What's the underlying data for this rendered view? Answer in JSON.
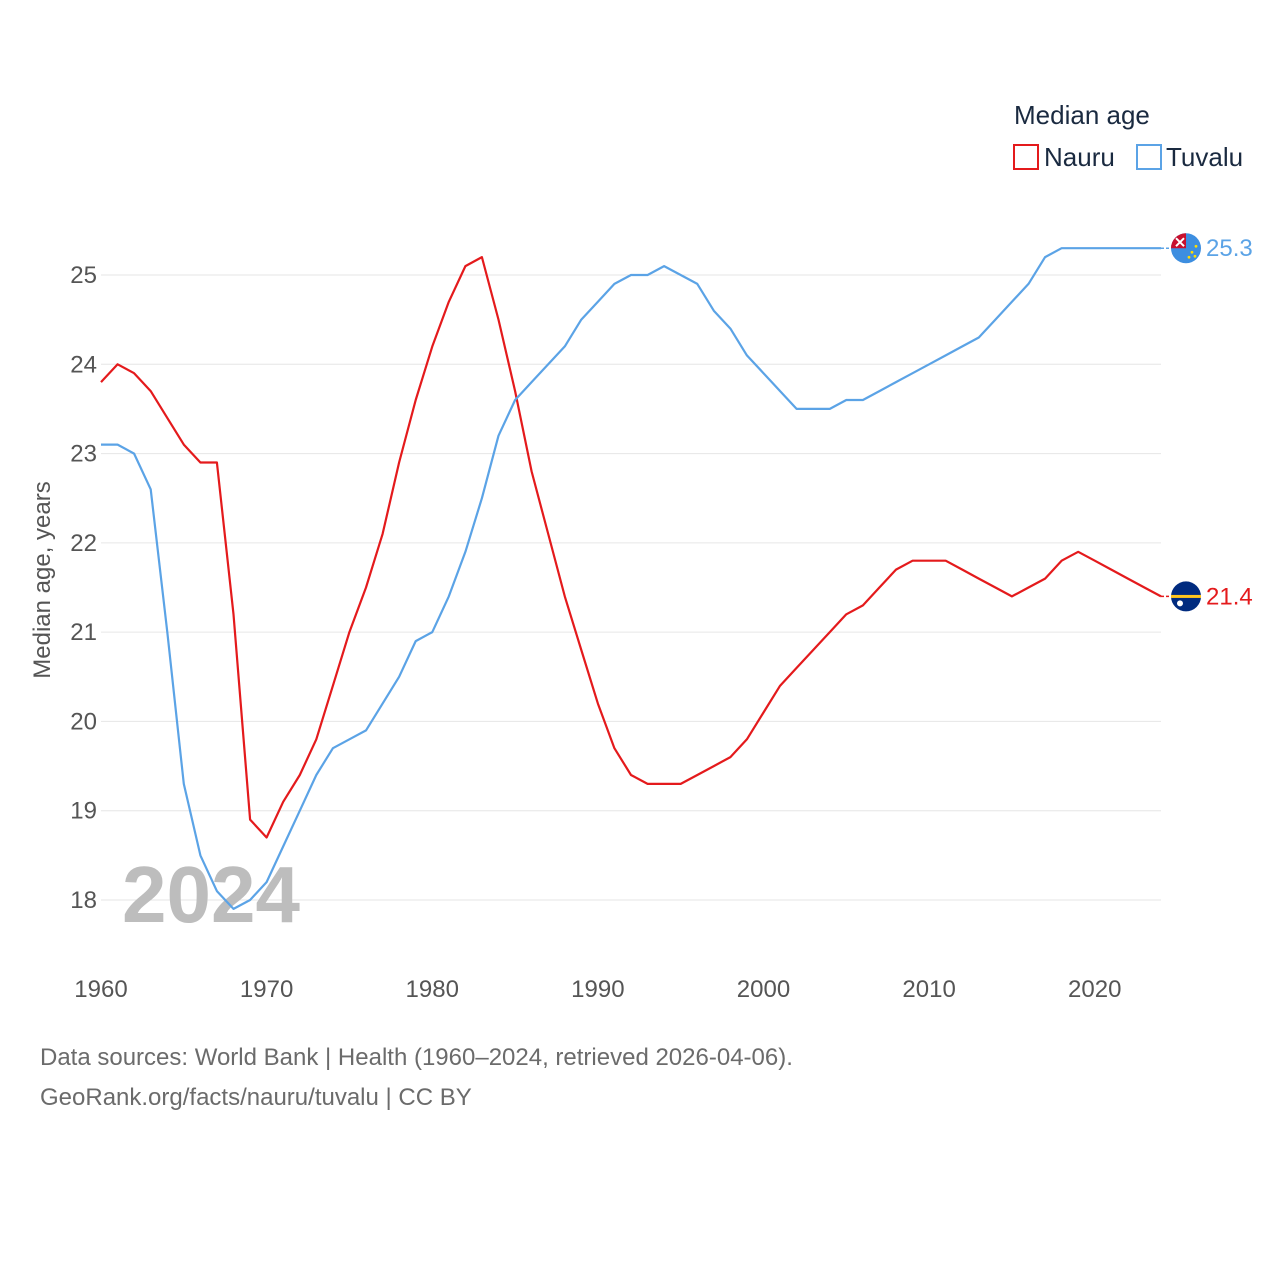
{
  "chart_data": {
    "type": "line",
    "title": "",
    "xlabel": "",
    "ylabel": "Median age, years",
    "xlim": [
      1960,
      2024
    ],
    "ylim": [
      18,
      25
    ],
    "x_ticks": [
      1960,
      1970,
      1980,
      1990,
      2000,
      2010,
      2020
    ],
    "y_ticks": [
      18,
      19,
      20,
      21,
      22,
      23,
      24,
      25
    ],
    "legend_title": "Median age",
    "legend_position": "top-right",
    "grid": true,
    "watermark_year": "2024",
    "x": [
      1960,
      1961,
      1962,
      1963,
      1964,
      1965,
      1966,
      1967,
      1968,
      1969,
      1970,
      1971,
      1972,
      1973,
      1974,
      1975,
      1976,
      1977,
      1978,
      1979,
      1980,
      1981,
      1982,
      1983,
      1984,
      1985,
      1986,
      1987,
      1988,
      1989,
      1990,
      1991,
      1992,
      1993,
      1994,
      1995,
      1996,
      1997,
      1998,
      1999,
      2000,
      2001,
      2002,
      2003,
      2004,
      2005,
      2006,
      2007,
      2008,
      2009,
      2010,
      2011,
      2012,
      2013,
      2014,
      2015,
      2016,
      2017,
      2018,
      2019,
      2020,
      2021,
      2022,
      2023,
      2024
    ],
    "series": [
      {
        "name": "Nauru",
        "color": "#e41a1c",
        "end_label": "21.4",
        "flag_icon": "nauru-flag-icon",
        "values": [
          23.8,
          24.0,
          23.9,
          23.7,
          23.4,
          23.1,
          22.9,
          22.9,
          21.2,
          18.9,
          18.7,
          19.1,
          19.4,
          19.8,
          20.4,
          21.0,
          21.5,
          22.1,
          22.9,
          23.6,
          24.2,
          24.7,
          25.1,
          25.2,
          24.5,
          23.7,
          22.8,
          22.1,
          21.4,
          20.8,
          20.2,
          19.7,
          19.4,
          19.3,
          19.3,
          19.3,
          19.4,
          19.5,
          19.6,
          19.8,
          20.1,
          20.4,
          20.6,
          20.8,
          21.0,
          21.2,
          21.3,
          21.5,
          21.7,
          21.8,
          21.8,
          21.8,
          21.7,
          21.6,
          21.5,
          21.4,
          21.5,
          21.6,
          21.8,
          21.9,
          21.8,
          21.7,
          21.6,
          21.5,
          21.4
        ]
      },
      {
        "name": "Tuvalu",
        "color": "#5ba3e6",
        "end_label": "25.3",
        "flag_icon": "tuvalu-flag-icon",
        "values": [
          23.1,
          23.1,
          23.0,
          22.6,
          21.0,
          19.3,
          18.5,
          18.1,
          17.9,
          18.0,
          18.2,
          18.6,
          19.0,
          19.4,
          19.7,
          19.8,
          19.9,
          20.2,
          20.5,
          20.9,
          21.0,
          21.4,
          21.9,
          22.5,
          23.2,
          23.6,
          23.8,
          24.0,
          24.2,
          24.5,
          24.7,
          24.9,
          25.0,
          25.0,
          25.1,
          25.0,
          24.9,
          24.6,
          24.4,
          24.1,
          23.9,
          23.7,
          23.5,
          23.5,
          23.5,
          23.6,
          23.6,
          23.7,
          23.8,
          23.9,
          24.0,
          24.1,
          24.2,
          24.3,
          24.5,
          24.7,
          24.9,
          25.2,
          25.3,
          25.3,
          25.3,
          25.3,
          25.3,
          25.3,
          25.3
        ]
      }
    ]
  },
  "footer": {
    "source_line": "Data sources: World Bank | Health (1960–2024, retrieved 2026-04-06).",
    "url_line": "GeoRank.org/facts/nauru/tuvalu | CC BY"
  }
}
